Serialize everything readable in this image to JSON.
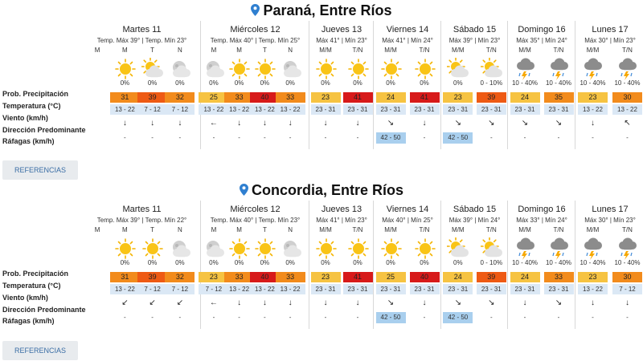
{
  "row_labels": {
    "precip": "Prob. Precipitación",
    "temp": "Temperatura (°C)",
    "wind": "Viento (km/h)",
    "dir": "Dirección Predominante",
    "gust": "Ráfagas (km/h)"
  },
  "references_label": "REFERENCIAS",
  "colors": {
    "t23": "#f6c342",
    "t24": "#f6c342",
    "t25": "#f6c342",
    "t30": "#f28b1c",
    "t31": "#f28b1c",
    "t32": "#f28b1c",
    "t33": "#f28b1c",
    "t35": "#f28b1c",
    "t39": "#ee5a14",
    "t40": "#d71a1a",
    "t41": "#d71a1a",
    "wind_bg": "#dbe8f5",
    "gust_bg": "#a9cfee"
  },
  "cities": [
    {
      "name": "Paraná, Entre Ríos",
      "days": [
        {
          "name": "Martes 11",
          "temp_text": "Temp. Máx 39° | Temp. Mín 23°",
          "cols": [
            {
              "period": "M",
              "icon": "",
              "prob": "",
              "temp": "",
              "wind": "",
              "dir": "",
              "gust": ""
            },
            {
              "period": "M",
              "icon": "sun",
              "prob": "0%",
              "temp": "31",
              "wind": "13 - 22",
              "dir": "↓",
              "gust": "-"
            },
            {
              "period": "T",
              "icon": "sun-cloud",
              "prob": "0%",
              "temp": "39",
              "wind": "7 - 12",
              "dir": "↓",
              "gust": "-"
            },
            {
              "period": "N",
              "icon": "moon-cloud",
              "prob": "0%",
              "temp": "32",
              "wind": "7 - 12",
              "dir": "↓",
              "gust": "-"
            }
          ]
        },
        {
          "name": "Miércoles 12",
          "temp_text": "Temp. Máx 40° | Temp. Mín 25°",
          "cols": [
            {
              "period": "M",
              "icon": "moon-cloud",
              "prob": "0%",
              "temp": "25",
              "wind": "13 - 22",
              "dir": "←",
              "gust": "-"
            },
            {
              "period": "M",
              "icon": "sun",
              "prob": "0%",
              "temp": "33",
              "wind": "13 - 22",
              "dir": "↓",
              "gust": "-"
            },
            {
              "period": "T",
              "icon": "sun",
              "prob": "0%",
              "temp": "40",
              "wind": "13 - 22",
              "dir": "↓",
              "gust": "-"
            },
            {
              "period": "N",
              "icon": "moon-cloud",
              "prob": "0%",
              "temp": "33",
              "wind": "13 - 22",
              "dir": "↓",
              "gust": "-"
            }
          ]
        },
        {
          "name": "Jueves 13",
          "temp_text": "Máx 41° | Mín 23°",
          "cols": [
            {
              "period": "M/M",
              "icon": "sun",
              "prob": "0%",
              "temp": "23",
              "wind": "23 - 31",
              "dir": "↓",
              "gust": "-"
            },
            {
              "period": "T/N",
              "icon": "sun",
              "prob": "0%",
              "temp": "41",
              "wind": "23 - 31",
              "dir": "↓",
              "gust": "-"
            }
          ]
        },
        {
          "name": "Viernes 14",
          "temp_text": "Máx 41° | Mín 24°",
          "cols": [
            {
              "period": "M/M",
              "icon": "sun",
              "prob": "0%",
              "temp": "24",
              "wind": "23 - 31",
              "dir": "↘",
              "gust": "42 - 50"
            },
            {
              "period": "T/N",
              "icon": "sun",
              "prob": "0%",
              "temp": "41",
              "wind": "23 - 31",
              "dir": "↓",
              "gust": "-"
            }
          ]
        },
        {
          "name": "Sábado 15",
          "temp_text": "Máx 39° | Mín 23°",
          "cols": [
            {
              "period": "M/M",
              "icon": "sun-cloud",
              "prob": "0%",
              "temp": "23",
              "wind": "23 - 31",
              "dir": "↘",
              "gust": "42 - 50"
            },
            {
              "period": "T/N",
              "icon": "sun-cloud",
              "prob": "0 - 10%",
              "temp": "39",
              "wind": "23 - 31",
              "dir": "↘",
              "gust": "-"
            }
          ]
        },
        {
          "name": "Domingo 16",
          "temp_text": "Máx 35° | Mín 24°",
          "cols": [
            {
              "period": "M/M",
              "icon": "storm",
              "prob": "10 - 40%",
              "temp": "24",
              "wind": "23 - 31",
              "dir": "↘",
              "gust": "-"
            },
            {
              "period": "T/N",
              "icon": "storm",
              "prob": "10 - 40%",
              "temp": "35",
              "wind": "23 - 31",
              "dir": "↘",
              "gust": "-"
            }
          ]
        },
        {
          "name": "Lunes 17",
          "temp_text": "Máx 30° | Mín 23°",
          "cols": [
            {
              "period": "M/M",
              "icon": "storm",
              "prob": "10 - 40%",
              "temp": "23",
              "wind": "13 - 22",
              "dir": "↓",
              "gust": "-"
            },
            {
              "period": "T/N",
              "icon": "storm",
              "prob": "10 - 40%",
              "temp": "30",
              "wind": "13 - 22",
              "dir": "↖",
              "gust": "-"
            }
          ]
        }
      ]
    },
    {
      "name": "Concordia, Entre Ríos",
      "days": [
        {
          "name": "Martes 11",
          "temp_text": "Temp. Máx 39° | Temp. Mín 22°",
          "cols": [
            {
              "period": "M",
              "icon": "",
              "prob": "",
              "temp": "",
              "wind": "",
              "dir": "",
              "gust": ""
            },
            {
              "period": "M",
              "icon": "sun",
              "prob": "0%",
              "temp": "31",
              "wind": "13 - 22",
              "dir": "↙",
              "gust": "-"
            },
            {
              "period": "T",
              "icon": "sun",
              "prob": "0%",
              "temp": "39",
              "wind": "7 - 12",
              "dir": "↙",
              "gust": "-"
            },
            {
              "period": "N",
              "icon": "moon-cloud",
              "prob": "0%",
              "temp": "32",
              "wind": "7 - 12",
              "dir": "↙",
              "gust": "-"
            }
          ]
        },
        {
          "name": "Miércoles 12",
          "temp_text": "Temp. Máx 40° | Temp. Mín 23°",
          "cols": [
            {
              "period": "M",
              "icon": "moon-cloud",
              "prob": "0%",
              "temp": "23",
              "wind": "7 - 12",
              "dir": "←",
              "gust": "-"
            },
            {
              "period": "M",
              "icon": "sun",
              "prob": "0%",
              "temp": "33",
              "wind": "13 - 22",
              "dir": "↓",
              "gust": "-"
            },
            {
              "period": "T",
              "icon": "sun",
              "prob": "0%",
              "temp": "40",
              "wind": "13 - 22",
              "dir": "↓",
              "gust": "-"
            },
            {
              "period": "N",
              "icon": "moon-cloud",
              "prob": "0%",
              "temp": "33",
              "wind": "13 - 22",
              "dir": "↓",
              "gust": "-"
            }
          ]
        },
        {
          "name": "Jueves 13",
          "temp_text": "Máx 41° | Mín 23°",
          "cols": [
            {
              "period": "M/M",
              "icon": "sun",
              "prob": "0%",
              "temp": "23",
              "wind": "23 - 31",
              "dir": "↓",
              "gust": "-"
            },
            {
              "period": "T/N",
              "icon": "sun",
              "prob": "0%",
              "temp": "41",
              "wind": "23 - 31",
              "dir": "↓",
              "gust": "-"
            }
          ]
        },
        {
          "name": "Viernes 14",
          "temp_text": "Máx 40° | Mín 25°",
          "cols": [
            {
              "period": "M/M",
              "icon": "sun",
              "prob": "0%",
              "temp": "25",
              "wind": "23 - 31",
              "dir": "↘",
              "gust": "42 - 50"
            },
            {
              "period": "T/N",
              "icon": "sun",
              "prob": "0%",
              "temp": "40",
              "wind": "23 - 31",
              "dir": "↓",
              "gust": "-"
            }
          ]
        },
        {
          "name": "Sábado 15",
          "temp_text": "Máx 39° | Mín 24°",
          "cols": [
            {
              "period": "M/M",
              "icon": "sun-cloud",
              "prob": "0%",
              "temp": "24",
              "wind": "23 - 31",
              "dir": "↘",
              "gust": "42 - 50"
            },
            {
              "period": "T/N",
              "icon": "sun-cloud",
              "prob": "0 - 10%",
              "temp": "39",
              "wind": "23 - 31",
              "dir": "↘",
              "gust": "-"
            }
          ]
        },
        {
          "name": "Domingo 16",
          "temp_text": "Máx 33° | Mín 24°",
          "cols": [
            {
              "period": "M/M",
              "icon": "storm",
              "prob": "10 - 40%",
              "temp": "24",
              "wind": "23 - 31",
              "dir": "↓",
              "gust": "-"
            },
            {
              "period": "T/N",
              "icon": "storm",
              "prob": "10 - 40%",
              "temp": "33",
              "wind": "23 - 31",
              "dir": "↘",
              "gust": "-"
            }
          ]
        },
        {
          "name": "Lunes 17",
          "temp_text": "Máx 30° | Mín 23°",
          "cols": [
            {
              "period": "M/M",
              "icon": "storm",
              "prob": "10 - 40%",
              "temp": "23",
              "wind": "13 - 22",
              "dir": "↓",
              "gust": "-"
            },
            {
              "period": "T/N",
              "icon": "storm",
              "prob": "10 - 40%",
              "temp": "30",
              "wind": "7 - 12",
              "dir": "↓",
              "gust": "-"
            }
          ]
        }
      ]
    }
  ]
}
